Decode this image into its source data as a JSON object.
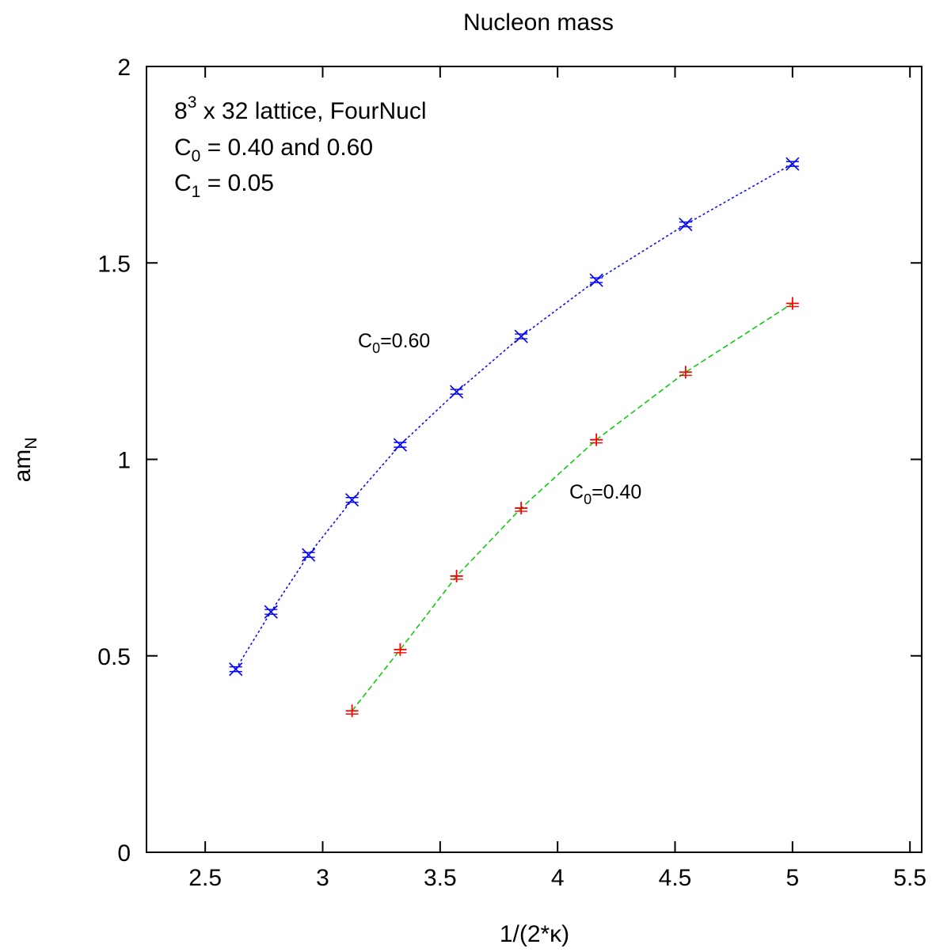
{
  "chart_data": {
    "type": "line",
    "title": "Nucleon mass",
    "xlabel": "1/(2*κ)",
    "ylabel": {
      "base": "am",
      "sub": "N"
    },
    "xlim": [
      2.25,
      5.55
    ],
    "ylim": [
      0,
      2
    ],
    "xticks": [
      2.5,
      3,
      3.5,
      4,
      4.5,
      5,
      5.5
    ],
    "xtick_labels": [
      "2.5",
      "3",
      "3.5",
      "4",
      "4.5",
      "5",
      "5.5"
    ],
    "yticks": [
      0,
      0.5,
      1,
      1.5,
      2
    ],
    "ytick_labels": [
      "0",
      "0.5",
      "1",
      "1.5",
      "2"
    ],
    "grid": false,
    "info_box": {
      "line1": {
        "base": "8",
        "sup": "3",
        "rest": " x 32 lattice, FourNucl"
      },
      "line2": {
        "base": "C",
        "sub": "0",
        "rest": " = 0.40 and 0.60"
      },
      "line3": {
        "base": "C",
        "sub": "1",
        "rest": " = 0.05"
      }
    },
    "series": [
      {
        "label": {
          "base": "C",
          "sub": "0",
          "rest": "=0.60",
          "anchor_x": 3.15,
          "anchor_y": 1.285
        },
        "color": "#0000ff",
        "marker": "x",
        "x": [
          2.63,
          2.78,
          2.94,
          3.125,
          3.33,
          3.57,
          3.845,
          4.165,
          4.545,
          5.0
        ],
        "y": [
          0.466,
          0.612,
          0.757,
          0.897,
          1.037,
          1.172,
          1.313,
          1.456,
          1.598,
          1.752
        ]
      },
      {
        "label": {
          "base": "C",
          "sub": "0",
          "rest": "=0.40",
          "anchor_x": 4.05,
          "anchor_y": 0.9
        },
        "color": "#ff0000",
        "line_color": "#00cc00",
        "marker": "+",
        "x": [
          3.125,
          3.33,
          3.57,
          3.845,
          4.165,
          4.545,
          5.0
        ],
        "y": [
          0.36,
          0.516,
          0.703,
          0.876,
          1.05,
          1.222,
          1.397
        ]
      }
    ]
  }
}
